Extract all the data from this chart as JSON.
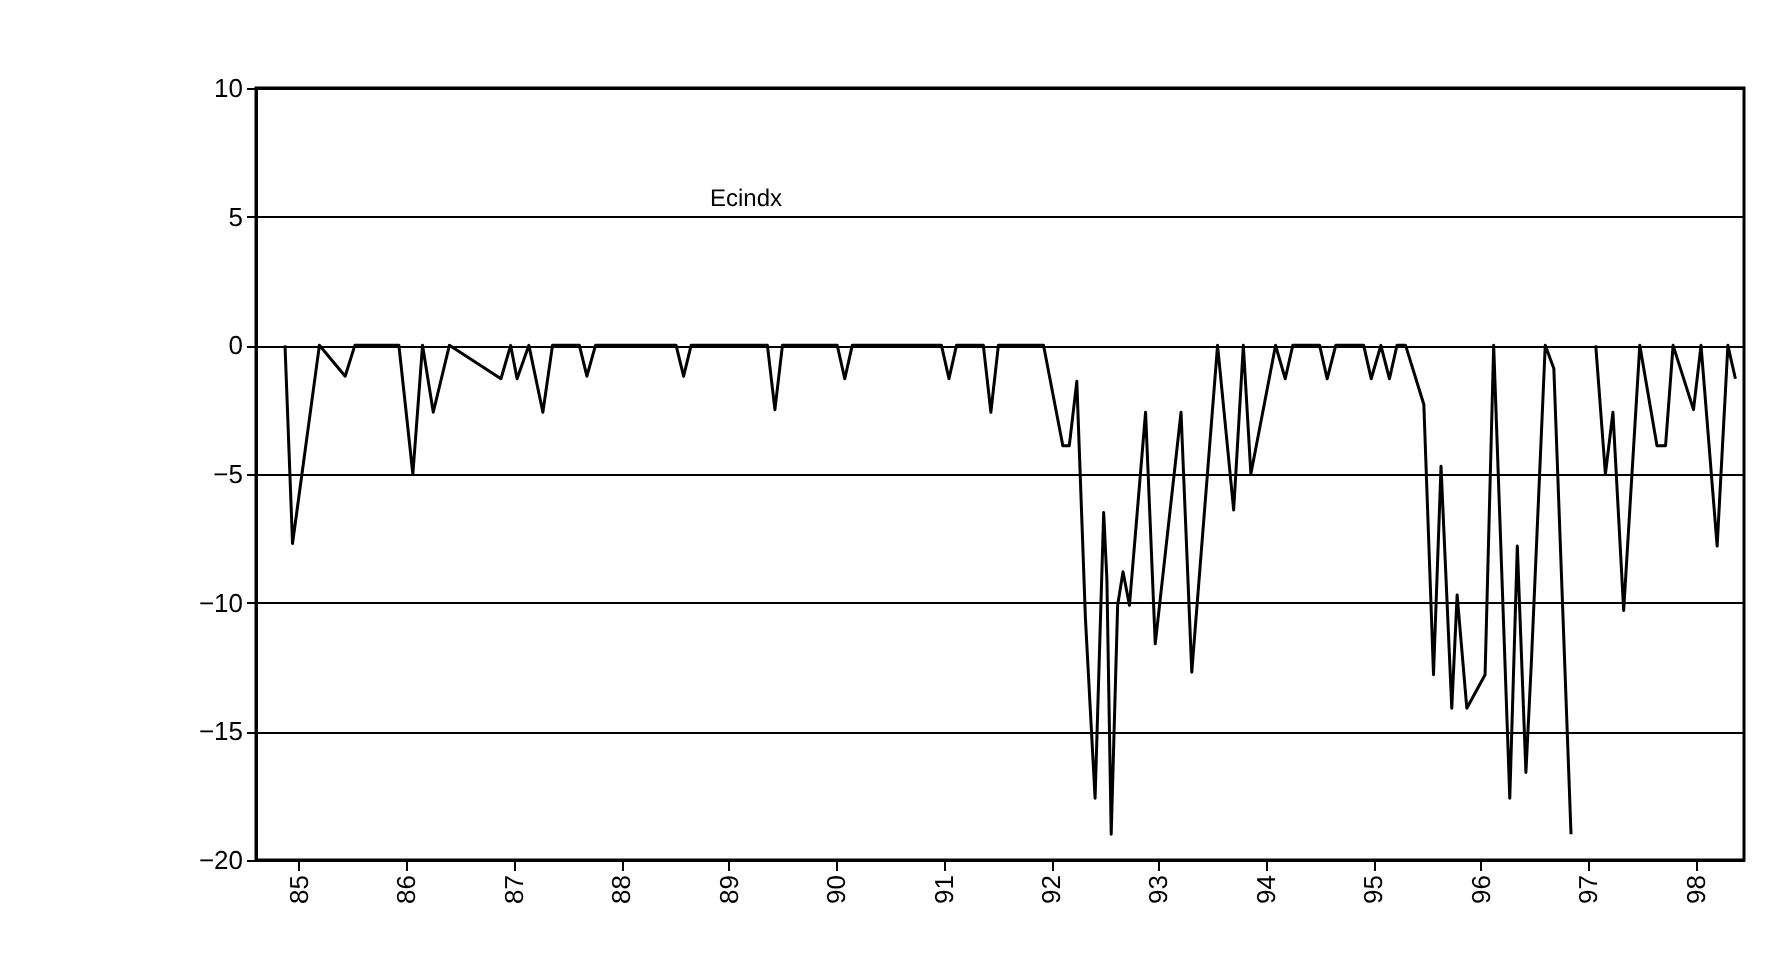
{
  "chart_data": {
    "type": "line",
    "x": [
      84.87,
      84.94,
      85.19,
      85.43,
      85.52,
      85.93,
      86.06,
      86.15,
      86.25,
      86.4,
      86.88,
      86.97,
      87.03,
      87.14,
      87.27,
      87.36,
      87.61,
      87.68,
      87.76,
      88.51,
      88.58,
      88.65,
      89.36,
      89.43,
      89.5,
      90.01,
      90.08,
      90.15,
      90.98,
      91.05,
      91.12,
      91.37,
      91.44,
      91.51,
      91.93,
      92.11,
      92.17,
      92.24,
      92.32,
      92.37,
      92.41,
      92.49,
      92.52,
      92.56,
      92.62,
      92.67,
      92.73,
      92.88,
      92.97,
      93.21,
      93.31,
      93.55,
      93.7,
      93.79,
      93.86,
      94.09,
      94.18,
      94.25,
      94.5,
      94.57,
      94.65,
      94.91,
      94.98,
      95.07,
      95.15,
      95.22,
      95.3,
      95.47,
      95.56,
      95.63,
      95.73,
      95.78,
      95.87,
      96.04,
      96.12,
      96.27,
      96.34,
      96.42,
      96.47,
      96.6,
      96.68,
      96.84,
      96.95,
      97.07,
      97.16,
      97.23,
      97.33,
      97.48,
      97.64,
      97.72,
      97.79,
      97.98,
      98.05,
      98.2,
      98.3,
      98.37
    ],
    "series": [
      {
        "name": "Ecindx",
        "color": "#000000",
        "values": [
          0,
          -7.7,
          0,
          -1.2,
          0,
          0,
          -5.0,
          0,
          -2.6,
          0,
          -1.3,
          0,
          -1.3,
          0,
          -2.6,
          0,
          0,
          -1.2,
          0,
          0,
          -1.2,
          0,
          0,
          -2.5,
          0,
          0,
          -1.3,
          0,
          0,
          -1.3,
          0,
          0,
          -2.6,
          0,
          0,
          -3.9,
          -3.9,
          -1.4,
          -10.6,
          -14.5,
          -17.6,
          -6.5,
          -9.1,
          -19.0,
          -10.1,
          -8.8,
          -10.1,
          -2.6,
          -11.6,
          -2.6,
          -12.7,
          0,
          -6.4,
          0,
          -5.0,
          0,
          -1.3,
          0,
          0,
          -1.3,
          0,
          0,
          -1.3,
          0,
          -1.3,
          0,
          0,
          -2.3,
          -12.8,
          -4.7,
          -14.1,
          -9.7,
          -14.1,
          -12.8,
          0,
          -17.6,
          -7.8,
          -16.6,
          -12.4,
          0,
          -0.9,
          -19.0,
          null,
          0,
          -5.0,
          -2.6,
          -10.3,
          0,
          -3.9,
          -3.9,
          0,
          -2.5,
          0,
          -7.8,
          0,
          -1.3
        ]
      }
    ],
    "xlim": [
      84.6,
      98.45
    ],
    "xticks": [
      85,
      86,
      87,
      88,
      89,
      90,
      91,
      92,
      93,
      94,
      95,
      96,
      97,
      98
    ],
    "ylim": [
      -20,
      10
    ],
    "yticks": [
      -20,
      -15,
      -10,
      -5,
      0,
      5,
      10
    ],
    "grid": "y",
    "marker": "none",
    "line_style": "solid"
  }
}
